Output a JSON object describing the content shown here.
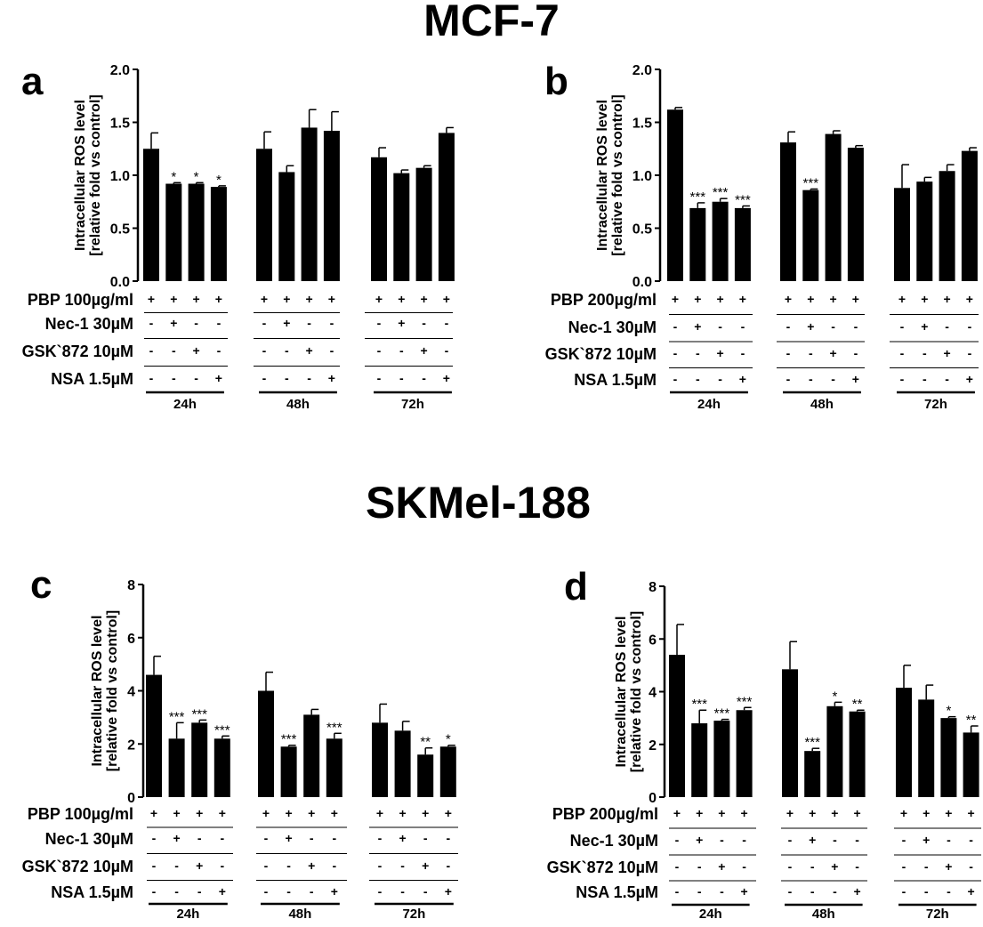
{
  "groups": [
    {
      "title": "MCF-7"
    },
    {
      "title": "SKMel-188"
    }
  ],
  "chart_data": [
    {
      "type": "bar",
      "panel": "a",
      "ylabel": [
        "Intracellular ROS level",
        "[relative fold vs control]"
      ],
      "ylim": [
        0,
        2.0
      ],
      "yticks": [
        "0.0",
        "0.5",
        "1.0",
        "1.5",
        "2.0"
      ],
      "ytick_values": [
        0,
        0.5,
        1.0,
        1.5,
        2.0
      ],
      "treatments": [
        "PBP 100µg/ml",
        "Nec-1 30µM",
        "GSK`872 10µM",
        "NSA 1.5µM"
      ],
      "groups": [
        {
          "label": "24h",
          "values": [
            1.25,
            0.92,
            0.92,
            0.89
          ],
          "errors": [
            0.15,
            0.01,
            0.01,
            0.01
          ],
          "stars": [
            "",
            "*",
            "*",
            "*"
          ]
        },
        {
          "label": "48h",
          "values": [
            1.25,
            1.03,
            1.45,
            1.42
          ],
          "errors": [
            0.16,
            0.06,
            0.17,
            0.18
          ],
          "stars": [
            "",
            "",
            "",
            ""
          ]
        },
        {
          "label": "72h",
          "values": [
            1.17,
            1.02,
            1.07,
            1.4
          ],
          "errors": [
            0.09,
            0.03,
            0.02,
            0.05
          ],
          "stars": [
            "",
            "",
            "",
            ""
          ]
        }
      ],
      "signs": [
        [
          "+",
          "+",
          "+",
          "+"
        ],
        [
          "-",
          "+",
          "-",
          "-"
        ],
        [
          "-",
          "-",
          "+",
          "-"
        ],
        [
          "-",
          "-",
          "-",
          "+"
        ]
      ]
    },
    {
      "type": "bar",
      "panel": "b",
      "ylabel": [
        "Intracellular ROS level",
        "[relative fold vs control]"
      ],
      "ylim": [
        0,
        2.0
      ],
      "yticks": [
        "0.0",
        "0.5",
        "1.0",
        "1.5",
        "2.0"
      ],
      "ytick_values": [
        0,
        0.5,
        1.0,
        1.5,
        2.0
      ],
      "treatments": [
        "PBP 200µg/ml",
        "Nec-1 30µM",
        "GSK`872 10µM",
        "NSA 1.5µM"
      ],
      "groups": [
        {
          "label": "24h",
          "values": [
            1.62,
            0.69,
            0.75,
            0.69
          ],
          "errors": [
            0.02,
            0.05,
            0.03,
            0.02
          ],
          "stars": [
            "",
            "***",
            "***",
            "***"
          ]
        },
        {
          "label": "48h",
          "values": [
            1.31,
            0.86,
            1.39,
            1.26
          ],
          "errors": [
            0.1,
            0.01,
            0.03,
            0.02
          ],
          "stars": [
            "",
            "***",
            "",
            ""
          ]
        },
        {
          "label": "72h",
          "values": [
            0.88,
            0.94,
            1.04,
            1.23
          ],
          "errors": [
            0.22,
            0.04,
            0.06,
            0.03
          ],
          "stars": [
            "",
            "",
            "",
            ""
          ]
        }
      ],
      "signs": [
        [
          "+",
          "+",
          "+",
          "+"
        ],
        [
          "-",
          "+",
          "-",
          "-"
        ],
        [
          "-",
          "-",
          "+",
          "-"
        ],
        [
          "-",
          "-",
          "-",
          "+"
        ]
      ]
    },
    {
      "type": "bar",
      "panel": "c",
      "ylabel": [
        "Intracellular ROS level",
        "[relative fold vs control]"
      ],
      "ylim": [
        0,
        8
      ],
      "yticks": [
        "0",
        "2",
        "4",
        "6",
        "8"
      ],
      "ytick_values": [
        0,
        2,
        4,
        6,
        8
      ],
      "treatments": [
        "PBP 100µg/ml",
        "Nec-1 30µM",
        "GSK`872 10µM",
        "NSA 1.5µM"
      ],
      "groups": [
        {
          "label": "24h",
          "values": [
            4.6,
            2.2,
            2.8,
            2.2
          ],
          "errors": [
            0.7,
            0.6,
            0.1,
            0.1
          ],
          "stars": [
            "",
            "***",
            "***",
            "***"
          ]
        },
        {
          "label": "48h",
          "values": [
            4.0,
            1.9,
            3.1,
            2.2
          ],
          "errors": [
            0.7,
            0.05,
            0.2,
            0.2
          ],
          "stars": [
            "",
            "***",
            "",
            "***"
          ]
        },
        {
          "label": "72h",
          "values": [
            2.8,
            2.5,
            1.6,
            1.9
          ],
          "errors": [
            0.7,
            0.35,
            0.25,
            0.05
          ],
          "stars": [
            "",
            "",
            "**",
            "*"
          ]
        }
      ],
      "signs": [
        [
          "+",
          "+",
          "+",
          "+"
        ],
        [
          "-",
          "+",
          "-",
          "-"
        ],
        [
          "-",
          "-",
          "+",
          "-"
        ],
        [
          "-",
          "-",
          "-",
          "+"
        ]
      ]
    },
    {
      "type": "bar",
      "panel": "d",
      "ylabel": [
        "Intracellular ROS level",
        "[relative fold vs control]"
      ],
      "ylim": [
        0,
        8
      ],
      "yticks": [
        "0",
        "2",
        "4",
        "6",
        "8"
      ],
      "ytick_values": [
        0,
        2,
        4,
        6,
        8
      ],
      "treatments": [
        "PBP 200µg/ml",
        "Nec-1 30µM",
        "GSK`872 10µM",
        "NSA 1.5µM"
      ],
      "groups": [
        {
          "label": "24h",
          "values": [
            5.4,
            2.8,
            2.9,
            3.3
          ],
          "errors": [
            1.15,
            0.5,
            0.05,
            0.1
          ],
          "stars": [
            "",
            "***",
            "***",
            "***"
          ]
        },
        {
          "label": "48h",
          "values": [
            4.85,
            1.75,
            3.45,
            3.25
          ],
          "errors": [
            1.05,
            0.1,
            0.15,
            0.05
          ],
          "stars": [
            "",
            "***",
            "*",
            "**"
          ]
        },
        {
          "label": "72h",
          "values": [
            4.15,
            3.7,
            3.0,
            2.45
          ],
          "errors": [
            0.85,
            0.55,
            0.05,
            0.25
          ],
          "stars": [
            "",
            "",
            "*",
            "**"
          ]
        }
      ],
      "signs": [
        [
          "+",
          "+",
          "+",
          "+"
        ],
        [
          "-",
          "+",
          "-",
          "-"
        ],
        [
          "-",
          "-",
          "+",
          "-"
        ],
        [
          "-",
          "-",
          "-",
          "+"
        ]
      ]
    }
  ]
}
